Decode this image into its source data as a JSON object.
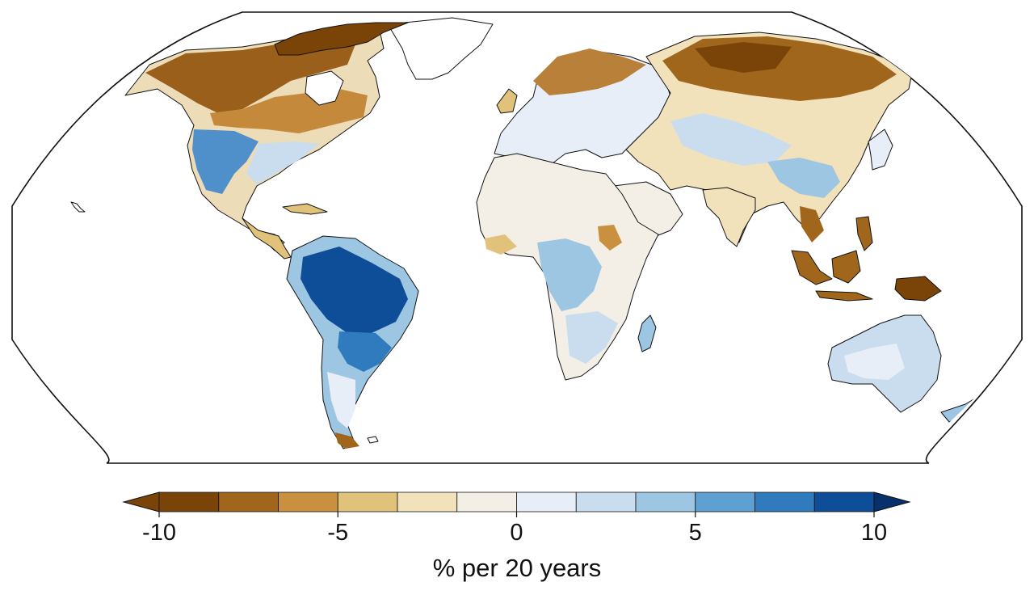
{
  "map": {
    "projection": "robinson",
    "quantity_shown": "trend",
    "colorbar": {
      "label": "% per 20 years",
      "vmin": -10,
      "vmax": 10,
      "step": 1.667,
      "extend": "both",
      "ticks": [
        {
          "value": -10,
          "label": "-10"
        },
        {
          "value": -5,
          "label": "-5"
        },
        {
          "value": 0,
          "label": "0"
        },
        {
          "value": 5,
          "label": "5"
        },
        {
          "value": 10,
          "label": "10"
        }
      ],
      "colors": [
        "#7a4408",
        "#a0661c",
        "#c99040",
        "#e0c27a",
        "#f2e2bb",
        "#f4efe6",
        "#e7eef8",
        "#c9ddef",
        "#9cc6e2",
        "#5fa0d2",
        "#2f7bbd",
        "#0e4d98"
      ],
      "extend_low_color": "#7a4408",
      "extend_high_color": "#08306b"
    },
    "regions_negative": [
      "Canada",
      "Alaska",
      "Northern Europe",
      "Siberia",
      "Southeast Asia",
      "Indonesia",
      "Papua New Guinea"
    ],
    "regions_positive": [
      "Amazon",
      "Eastern Brazil",
      "Southwestern United States",
      "Central Africa",
      "Eastern Australia"
    ]
  }
}
